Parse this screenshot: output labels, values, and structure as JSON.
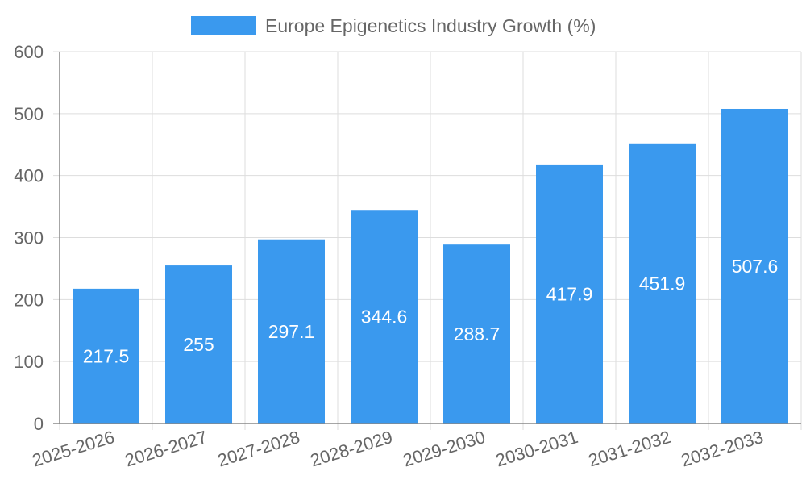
{
  "chart_data": {
    "type": "bar",
    "legend": {
      "label": "Europe Epigenetics Industry Growth (%)",
      "placement": "top-center"
    },
    "categories": [
      "2025-2026",
      "2026-2027",
      "2027-2028",
      "2028-2029",
      "2029-2030",
      "2030-2031",
      "2031-2032",
      "2032-2033"
    ],
    "values": [
      217.5,
      255,
      297.1,
      344.6,
      288.7,
      417.9,
      451.9,
      507.6
    ],
    "data_labels": [
      "217.5",
      "255",
      "297.1",
      "344.6",
      "288.7",
      "417.9",
      "451.9",
      "507.6"
    ],
    "ylim": [
      0,
      600
    ],
    "yticks": [
      "0",
      "100",
      "200",
      "300",
      "400",
      "500",
      "600"
    ],
    "grid": true,
    "colors": {
      "bar": "#3a99ee",
      "grid": "#dddddd",
      "axis": "#888888",
      "tick_text": "#666666",
      "legend_text": "#666666",
      "data_label": "#ffffff"
    }
  }
}
